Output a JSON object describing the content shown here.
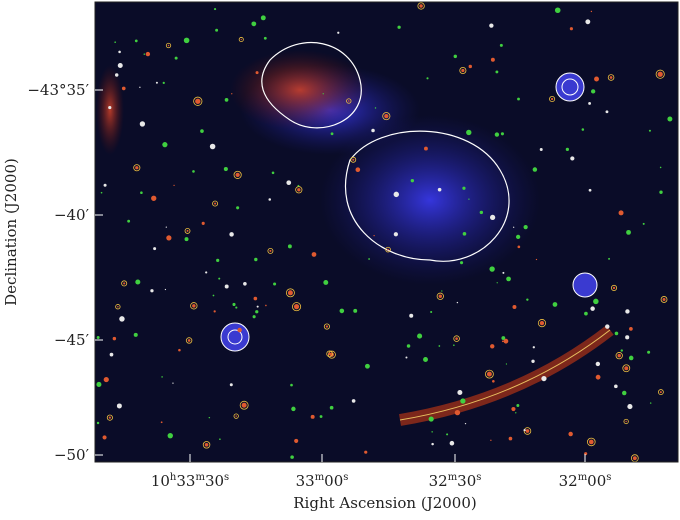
{
  "figure": {
    "y_label": "Declination (J2000)",
    "x_label": "Right Ascension (J2000)",
    "y_ticks": [
      "−43°35′",
      "−40′",
      "−45′",
      "−50′"
    ],
    "x_ticks": [
      [
        "10",
        "h",
        "33",
        "m",
        "30",
        "s"
      ],
      [
        "33",
        "m",
        "00",
        "s"
      ],
      [
        "32",
        "m",
        "30",
        "s"
      ],
      [
        "32",
        "m",
        "00",
        "s"
      ]
    ]
  }
}
